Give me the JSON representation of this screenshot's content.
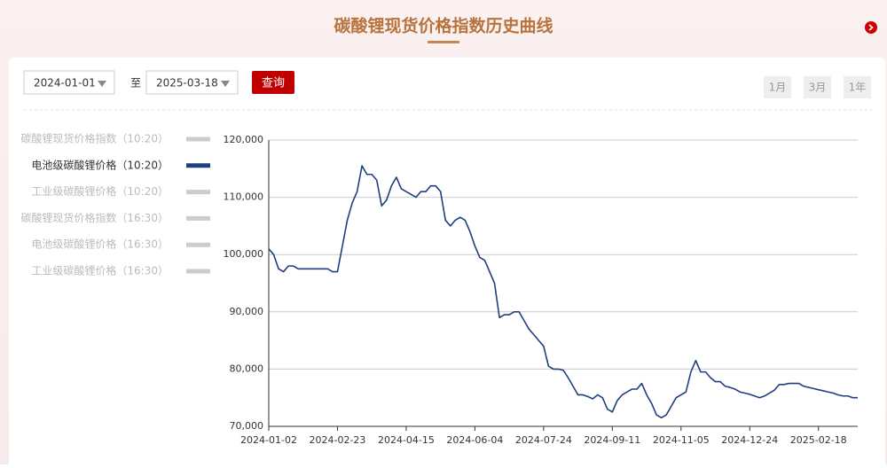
{
  "header": {
    "title": "碳酸锂现货价格指数历史曲线"
  },
  "controls": {
    "date_from": "2024-01-01",
    "separator": "至",
    "date_to": "2025-03-18",
    "query": "查询",
    "ranges": [
      "1月",
      "3月",
      "1年"
    ]
  },
  "legend": {
    "before": [
      "碳酸锂现货价格指数（10:20）"
    ],
    "after": [
      "工业级碳酸锂价格（10:20）",
      "碳酸锂现货价格指数（16:30）",
      "电池级碳酸锂价格（16:30）",
      "工业级碳酸锂价格（16:30）"
    ],
    "inactive_color": "#cccccc"
  },
  "chart_data": {
    "type": "line",
    "categories": [
      "2024-01-02",
      null,
      null,
      null,
      null,
      null,
      null,
      null,
      null,
      null,
      null,
      null,
      null,
      null,
      "2024-02-23",
      null,
      null,
      null,
      null,
      null,
      null,
      null,
      null,
      null,
      null,
      null,
      null,
      null,
      "2024-04-15",
      null,
      null,
      null,
      null,
      null,
      null,
      null,
      null,
      null,
      null,
      null,
      null,
      null,
      "2024-06-04",
      null,
      null,
      null,
      null,
      null,
      null,
      null,
      null,
      null,
      null,
      null,
      null,
      null,
      "2024-07-24",
      null,
      null,
      null,
      null,
      null,
      null,
      null,
      null,
      null,
      null,
      null,
      null,
      null,
      "2024-09-11",
      null,
      null,
      null,
      null,
      null,
      null,
      null,
      null,
      null,
      null,
      null,
      null,
      null,
      "2024-11-05",
      null,
      null,
      null,
      null,
      null,
      null,
      null,
      null,
      null,
      null,
      null,
      null,
      null,
      "2024-12-24",
      null,
      null,
      null,
      null,
      null,
      null,
      null,
      null,
      null,
      null,
      null,
      null,
      null,
      "2025-02-18",
      null,
      null,
      null,
      null,
      null,
      null,
      null,
      null
    ],
    "series": [
      {
        "name": "电池级碳酸锂价格（10:20）",
        "color": "#1f3f7f",
        "values": [
          101000,
          100000,
          97500,
          97000,
          98000,
          98000,
          97500,
          97500,
          97500,
          97500,
          97500,
          97500,
          97500,
          97000,
          97000,
          101500,
          106000,
          109000,
          111000,
          115500,
          114000,
          114000,
          113000,
          108500,
          109500,
          112000,
          113500,
          111500,
          111000,
          110500,
          110000,
          111000,
          111000,
          112000,
          112000,
          111000,
          106000,
          105000,
          106000,
          106500,
          106000,
          104000,
          101500,
          99500,
          99000,
          97000,
          95000,
          89000,
          89500,
          89500,
          90000,
          90000,
          88500,
          87000,
          86000,
          85000,
          84000,
          80500,
          80000,
          80000,
          79800,
          78500,
          77000,
          75500,
          75500,
          75200,
          74800,
          75500,
          75000,
          73000,
          72500,
          74500,
          75500,
          76000,
          76500,
          76500,
          77500,
          75500,
          74000,
          72000,
          71500,
          72000,
          73500,
          75000,
          75500,
          76000,
          79500,
          81500,
          79500,
          79500,
          78500,
          77800,
          77800,
          77000,
          76800,
          76500,
          76000,
          75800,
          75600,
          75300,
          75000,
          75300,
          75800,
          76300,
          77300,
          77300,
          77500,
          77500,
          77500,
          77000,
          76800,
          76600,
          76400,
          76200,
          76000,
          75800,
          75500,
          75300,
          75300,
          75000,
          75000
        ]
      }
    ],
    "ylim": [
      70000,
      120000
    ],
    "yticks": [
      {
        "value": 70000,
        "label": "70,000"
      },
      {
        "value": 80000,
        "label": "80,000"
      },
      {
        "value": 90000,
        "label": "90,000"
      },
      {
        "value": 100000,
        "label": "100,000"
      },
      {
        "value": 110000,
        "label": "110,000"
      },
      {
        "value": 120000,
        "label": "120,000"
      }
    ],
    "grid": true
  }
}
